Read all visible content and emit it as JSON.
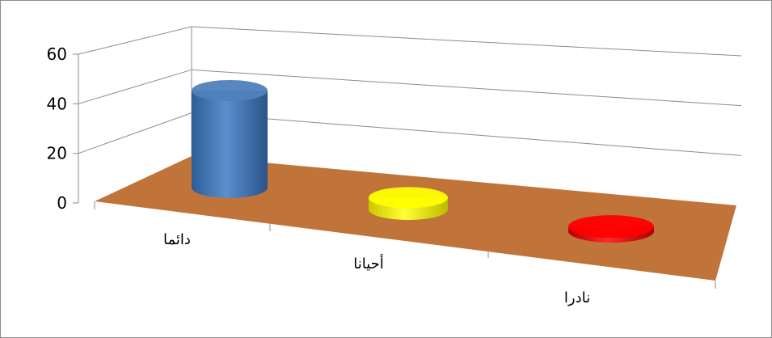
{
  "chart_data": {
    "type": "bar",
    "style": "3d-cylinder",
    "categories": [
      "دائما",
      "أحيانا",
      "نادرا"
    ],
    "series": [
      {
        "values": [
          41,
          5,
          2
        ],
        "colors": [
          "#4f81bd",
          "#ffff00",
          "#ff0000"
        ]
      }
    ],
    "y_ticks": [
      "0",
      "20",
      "40",
      "60"
    ],
    "ylim": [
      0,
      60
    ],
    "grid": true,
    "legend": "none",
    "floor_color": "#c0743a"
  }
}
